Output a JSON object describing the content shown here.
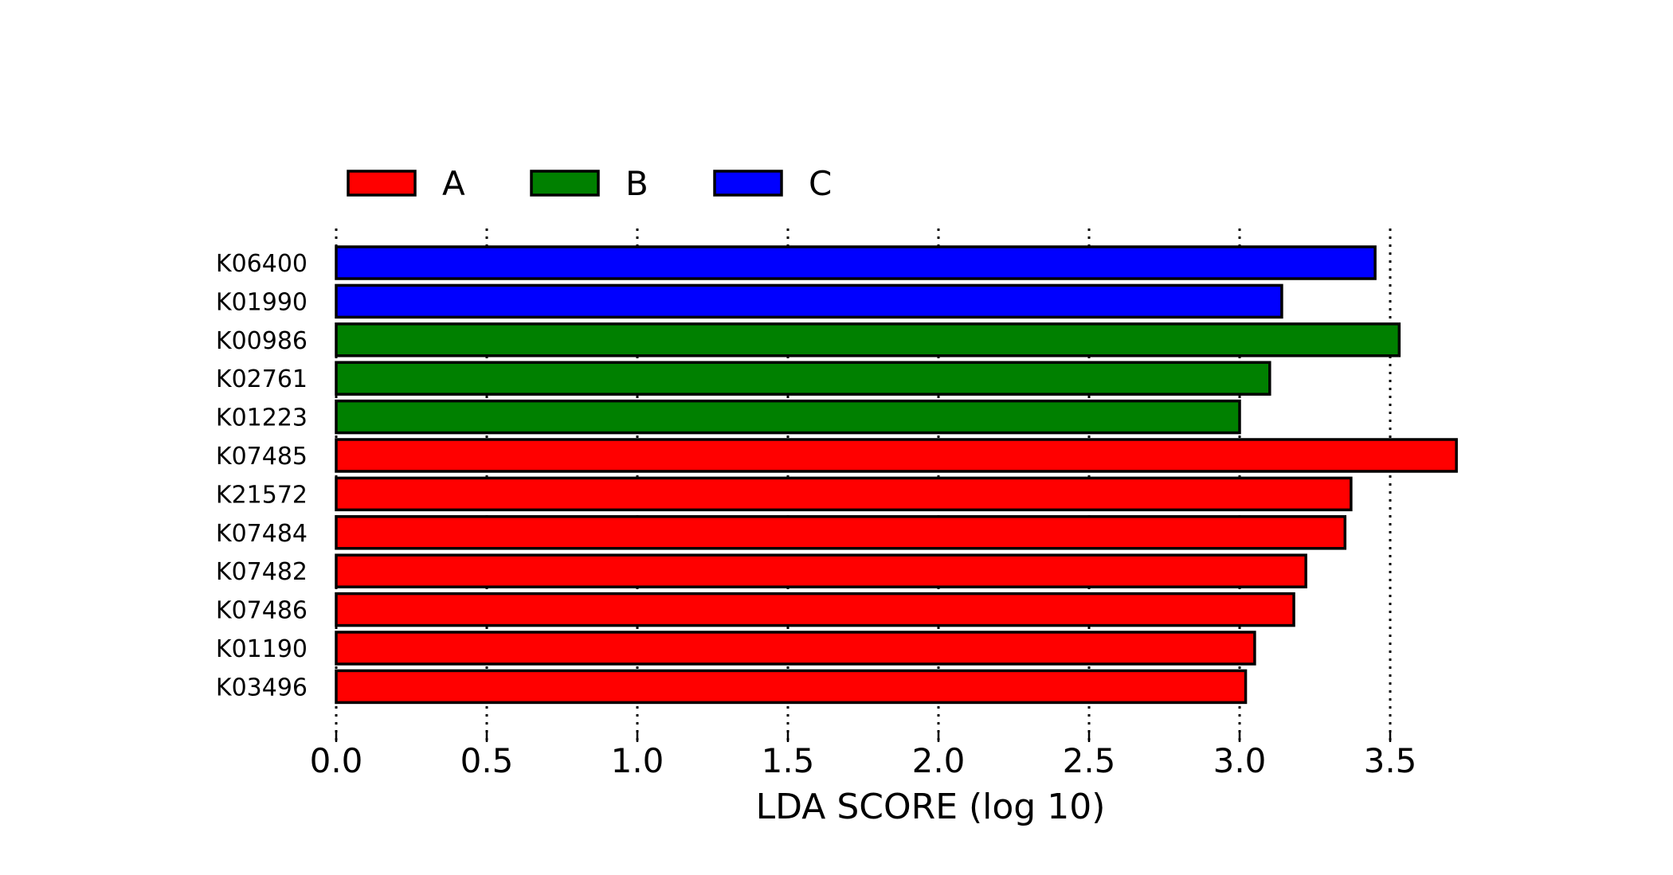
{
  "chart_data": {
    "type": "bar",
    "orientation": "horizontal",
    "title": "",
    "xlabel": "LDA SCORE (log 10)",
    "ylabel": "",
    "xlim": [
      0.0,
      3.75
    ],
    "xticks": [
      "0.0",
      "0.5",
      "1.0",
      "1.5",
      "2.0",
      "2.5",
      "3.0",
      "3.5"
    ],
    "grid": "vertical dotted",
    "legend_position": "top-left",
    "legend": [
      {
        "name": "A",
        "color": "#ff0000"
      },
      {
        "name": "B",
        "color": "#008000"
      },
      {
        "name": "C",
        "color": "#0000ff"
      }
    ],
    "bars": [
      {
        "label": "K06400",
        "value": 3.45,
        "group": "C"
      },
      {
        "label": "K01990",
        "value": 3.14,
        "group": "C"
      },
      {
        "label": "K00986",
        "value": 3.53,
        "group": "B"
      },
      {
        "label": "K02761",
        "value": 3.1,
        "group": "B"
      },
      {
        "label": "K01223",
        "value": 3.0,
        "group": "B"
      },
      {
        "label": "K07485",
        "value": 3.72,
        "group": "A"
      },
      {
        "label": "K21572",
        "value": 3.37,
        "group": "A"
      },
      {
        "label": "K07484",
        "value": 3.35,
        "group": "A"
      },
      {
        "label": "K07482",
        "value": 3.22,
        "group": "A"
      },
      {
        "label": "K07486",
        "value": 3.18,
        "group": "A"
      },
      {
        "label": "K01190",
        "value": 3.05,
        "group": "A"
      },
      {
        "label": "K03496",
        "value": 3.02,
        "group": "A"
      }
    ]
  }
}
